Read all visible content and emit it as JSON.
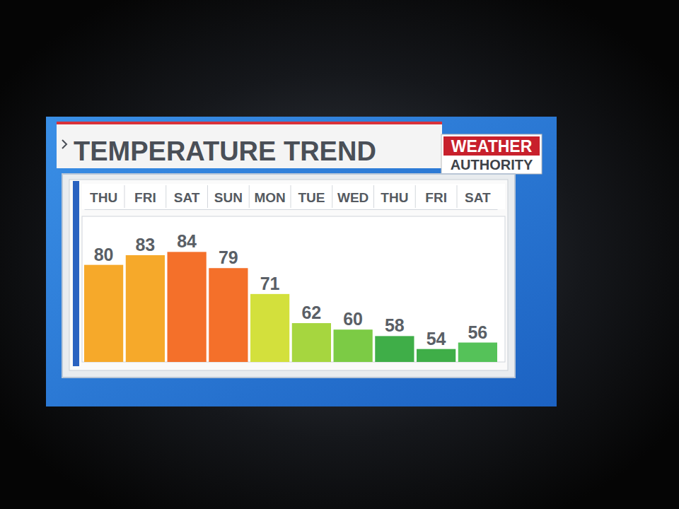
{
  "chart_data": {
    "type": "bar",
    "title": "TEMPERATURE TREND",
    "annotations": [
      "WEATHER",
      "AUTHORITY"
    ],
    "categories": [
      "THU",
      "FRI",
      "SAT",
      "SUN",
      "MON",
      "TUE",
      "WED",
      "THU",
      "FRI",
      "SAT"
    ],
    "values": [
      80,
      83,
      84,
      79,
      71,
      62,
      60,
      58,
      54,
      56
    ],
    "colors": [
      "#f6a92a",
      "#f6a92a",
      "#f4702a",
      "#f4702a",
      "#d3e03c",
      "#a6d63f",
      "#7ccb45",
      "#3fae48",
      "#3fae48",
      "#55c259"
    ],
    "ylim": [
      50,
      95
    ],
    "grid": false,
    "data_labels": true,
    "tick_labels": "x"
  }
}
